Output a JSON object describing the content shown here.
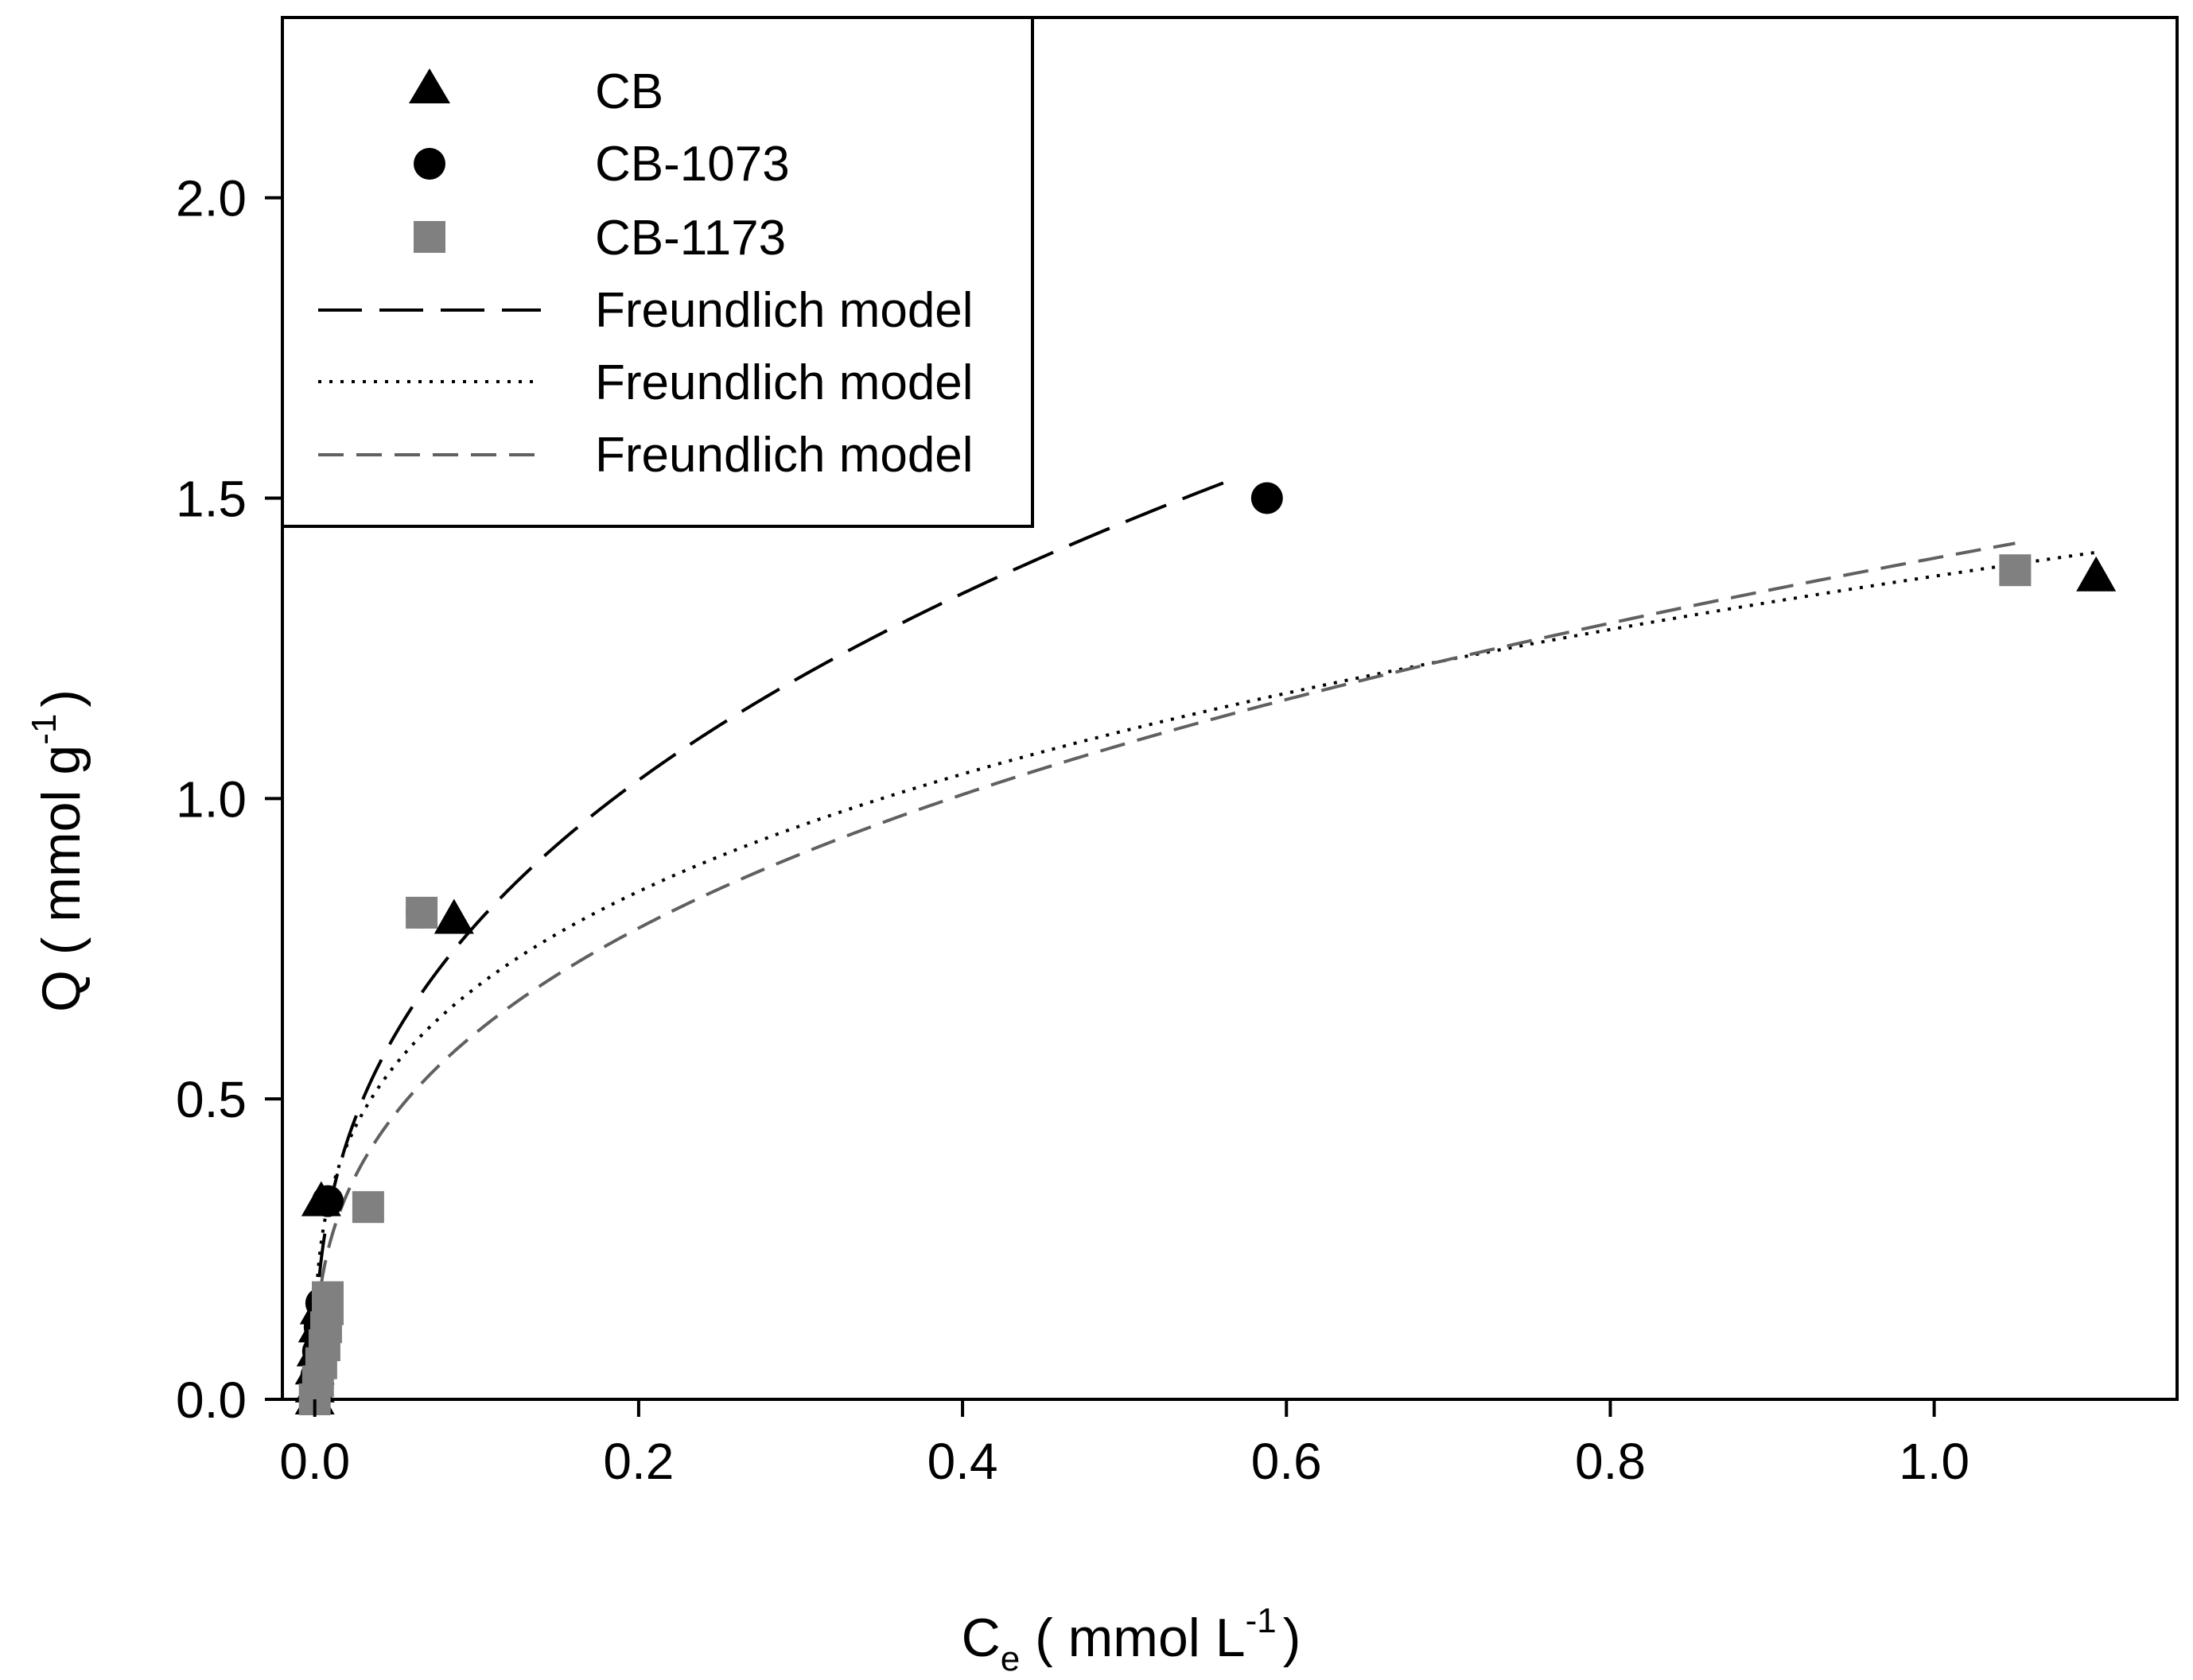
{
  "chart_data": {
    "type": "scatter",
    "title": "",
    "xlabel": {
      "main": "C",
      "sub": "e",
      "units": " ( mmol L",
      "sup": "-1",
      "close": ")"
    },
    "ylabel": {
      "main": "Q ( mmol g",
      "sup": "-1",
      "close": ")"
    },
    "xlim": [
      -0.02,
      1.15
    ],
    "ylim": [
      0.0,
      2.3
    ],
    "xticks": [
      0.0,
      0.2,
      0.4,
      0.6,
      0.8,
      1.0
    ],
    "xtick_labels": [
      "0.0",
      "0.2",
      "0.4",
      "0.6",
      "0.8",
      "1.0"
    ],
    "yticks": [
      0.0,
      0.5,
      1.0,
      1.5,
      2.0
    ],
    "ytick_labels": [
      "0.0",
      "0.5",
      "1.0",
      "1.5",
      "2.0"
    ],
    "grid": false,
    "legend_position": "top-left",
    "series": [
      {
        "name": "CB",
        "kind": "points",
        "marker": "triangle",
        "color": "#000000",
        "points": [
          [
            0.0,
            0.0
          ],
          [
            0.0,
            0.02
          ],
          [
            0.0,
            0.05
          ],
          [
            0.001,
            0.08
          ],
          [
            0.002,
            0.12
          ],
          [
            0.003,
            0.15
          ],
          [
            0.004,
            0.33
          ],
          [
            0.086,
            0.8
          ],
          [
            1.1,
            1.37
          ]
        ]
      },
      {
        "name": "CB-1073",
        "kind": "points",
        "marker": "circle",
        "color": "#000000",
        "points": [
          [
            0.0,
            0.0
          ],
          [
            0.001,
            0.04
          ],
          [
            0.002,
            0.08
          ],
          [
            0.003,
            0.12
          ],
          [
            0.004,
            0.16
          ],
          [
            0.008,
            0.33
          ],
          [
            0.066,
            0.81
          ],
          [
            0.588,
            1.5
          ]
        ]
      },
      {
        "name": "CB-1173",
        "kind": "points",
        "marker": "square",
        "color": "#808080",
        "points": [
          [
            0.0,
            0.0
          ],
          [
            0.002,
            0.03
          ],
          [
            0.004,
            0.06
          ],
          [
            0.006,
            0.09
          ],
          [
            0.007,
            0.12
          ],
          [
            0.008,
            0.15
          ],
          [
            0.008,
            0.17
          ],
          [
            0.033,
            0.32
          ],
          [
            0.066,
            0.81
          ],
          [
            1.05,
            1.38
          ]
        ]
      },
      {
        "name": "Freundlich model",
        "kind": "curve",
        "style": "longdash",
        "color": "#000000",
        "x_range": [
          0.0,
          0.57
        ],
        "K": 1.9,
        "n_inv": 0.38
      },
      {
        "name": "Freundlich model",
        "kind": "curve",
        "style": "dotted",
        "color": "#000000",
        "x_range": [
          0.0,
          1.1
        ],
        "K": 1.37,
        "n_inv": 0.3
      },
      {
        "name": "Freundlich model",
        "kind": "curve",
        "style": "dash",
        "color": "#606060",
        "x_range": [
          0.0,
          1.05
        ],
        "K": 1.4,
        "n_inv": 0.36
      }
    ]
  }
}
